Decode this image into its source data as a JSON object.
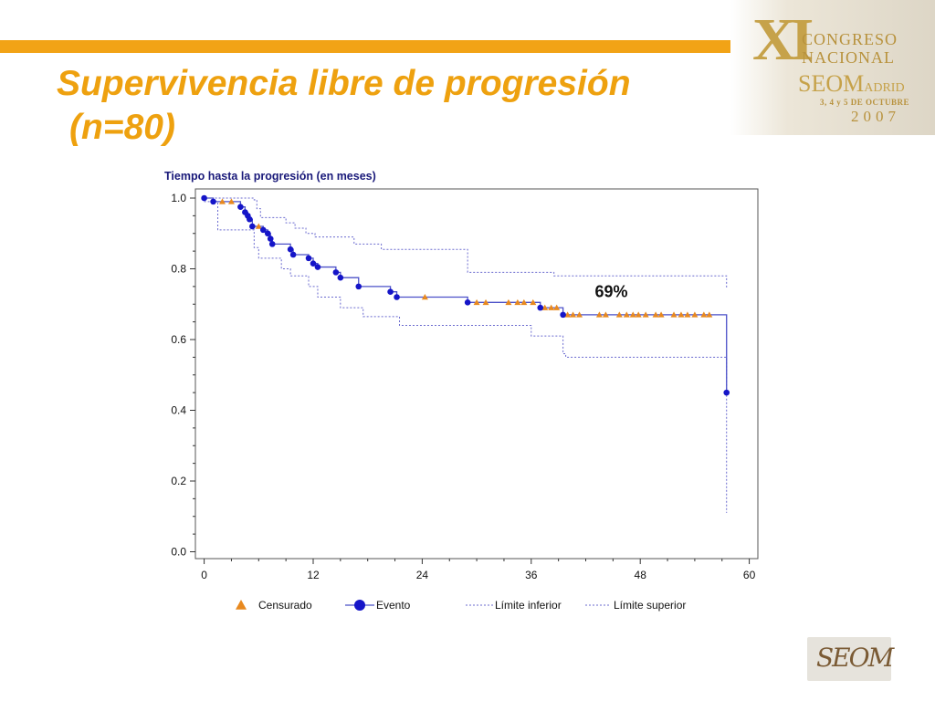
{
  "slide": {
    "title_line1": "Supervivencia libre de progresión",
    "title_line2": "(n=80)"
  },
  "banner": {
    "roman_numeral": "XI",
    "congreso": "CONGRESO",
    "nacional": "NACIONAL",
    "seom": "SEOM",
    "madrid": "ADRID",
    "dates": "3, 4 y 5 DE OCTUBRE",
    "year": "2007"
  },
  "logo": {
    "text": "SEOM"
  },
  "colors": {
    "title": "#eea10f",
    "accent_bar": "#f2a316",
    "curve": "#4b50c8",
    "event_marker": "#1515c8",
    "censor_marker": "#e8891f",
    "ci_line": "#6a6acf",
    "chart_title": "#1a1a7a"
  },
  "chart_data": {
    "type": "line",
    "title": "Tiempo hasta la progresión (en meses)",
    "xlim": [
      0,
      60
    ],
    "ylim": [
      0,
      1.0
    ],
    "x_ticks": [
      0,
      12,
      24,
      36,
      48,
      60
    ],
    "x_tick_labels": [
      "0",
      "12",
      "24",
      "36",
      "48",
      "60"
    ],
    "y_ticks": [
      0,
      0.2,
      0.4,
      0.6,
      0.8,
      1.0
    ],
    "y_tick_labels": [
      "0.0",
      "0.2",
      "0.4",
      "0.6",
      "0.8",
      "1.0"
    ],
    "grid": false,
    "legend_placement": "bottom",
    "annotation": "69%",
    "annotation_at": {
      "x": 43,
      "y": 0.72
    },
    "legend": [
      {
        "label": "Censurado",
        "symbol": "triangle"
      },
      {
        "label": "Evento",
        "symbol": "circle-line"
      },
      {
        "label": "Límite inferior",
        "symbol": "dotted"
      },
      {
        "label": "Límite superior",
        "symbol": "dotted"
      }
    ],
    "survival_steps": [
      [
        0,
        1.0
      ],
      [
        1,
        0.99
      ],
      [
        4,
        0.975
      ],
      [
        4.5,
        0.96
      ],
      [
        4.8,
        0.95
      ],
      [
        5,
        0.94
      ],
      [
        5.3,
        0.92
      ],
      [
        6.5,
        0.91
      ],
      [
        7,
        0.9
      ],
      [
        7.3,
        0.885
      ],
      [
        7.5,
        0.87
      ],
      [
        9.5,
        0.855
      ],
      [
        9.8,
        0.84
      ],
      [
        11.5,
        0.83
      ],
      [
        12,
        0.815
      ],
      [
        12.5,
        0.805
      ],
      [
        14.5,
        0.79
      ],
      [
        15,
        0.775
      ],
      [
        17,
        0.75
      ],
      [
        20.5,
        0.735
      ],
      [
        21.2,
        0.72
      ],
      [
        29,
        0.705
      ],
      [
        37,
        0.69
      ],
      [
        39.5,
        0.67
      ],
      [
        57.5,
        0.45
      ]
    ],
    "end_x": 57.5,
    "lower_limit_steps": [
      [
        0,
        0.99
      ],
      [
        1.5,
        0.91
      ],
      [
        5.5,
        0.86
      ],
      [
        6,
        0.83
      ],
      [
        8.5,
        0.8
      ],
      [
        9.5,
        0.78
      ],
      [
        11.5,
        0.75
      ],
      [
        12.5,
        0.72
      ],
      [
        15,
        0.69
      ],
      [
        17.5,
        0.665
      ],
      [
        21.5,
        0.64
      ],
      [
        36,
        0.61
      ],
      [
        39.5,
        0.56
      ],
      [
        39.8,
        0.55
      ],
      [
        57.5,
        0.11
      ]
    ],
    "upper_limit_steps": [
      [
        0,
        1.0
      ],
      [
        5.5,
        0.995
      ],
      [
        5.8,
        0.97
      ],
      [
        6.2,
        0.945
      ],
      [
        9,
        0.93
      ],
      [
        10,
        0.915
      ],
      [
        11.2,
        0.9
      ],
      [
        12.2,
        0.89
      ],
      [
        16.5,
        0.87
      ],
      [
        19.5,
        0.855
      ],
      [
        29,
        0.79
      ],
      [
        38.5,
        0.78
      ],
      [
        57.5,
        0.745
      ]
    ],
    "events": [
      [
        0,
        1.0
      ],
      [
        1,
        0.99
      ],
      [
        4,
        0.975
      ],
      [
        4.5,
        0.96
      ],
      [
        4.8,
        0.95
      ],
      [
        5,
        0.94
      ],
      [
        5.3,
        0.92
      ],
      [
        6.5,
        0.91
      ],
      [
        7,
        0.9
      ],
      [
        7.3,
        0.885
      ],
      [
        7.5,
        0.87
      ],
      [
        9.5,
        0.855
      ],
      [
        9.8,
        0.84
      ],
      [
        11.5,
        0.83
      ],
      [
        12,
        0.815
      ],
      [
        12.5,
        0.805
      ],
      [
        14.5,
        0.79
      ],
      [
        15,
        0.775
      ],
      [
        17,
        0.75
      ],
      [
        20.5,
        0.735
      ],
      [
        21.2,
        0.72
      ],
      [
        29,
        0.705
      ],
      [
        37,
        0.69
      ],
      [
        39.5,
        0.67
      ],
      [
        57.5,
        0.45
      ]
    ],
    "censored": [
      [
        2,
        0.99
      ],
      [
        3,
        0.99
      ],
      [
        6,
        0.92
      ],
      [
        24.3,
        0.72
      ],
      [
        30,
        0.705
      ],
      [
        31,
        0.705
      ],
      [
        33.5,
        0.705
      ],
      [
        34.5,
        0.705
      ],
      [
        35.2,
        0.705
      ],
      [
        36.2,
        0.705
      ],
      [
        37.5,
        0.69
      ],
      [
        38.2,
        0.69
      ],
      [
        38.8,
        0.69
      ],
      [
        40,
        0.67
      ],
      [
        40.6,
        0.67
      ],
      [
        41.3,
        0.67
      ],
      [
        43.5,
        0.67
      ],
      [
        44.2,
        0.67
      ],
      [
        45.7,
        0.67
      ],
      [
        46.5,
        0.67
      ],
      [
        47.2,
        0.67
      ],
      [
        47.8,
        0.67
      ],
      [
        48.6,
        0.67
      ],
      [
        49.7,
        0.67
      ],
      [
        50.3,
        0.67
      ],
      [
        51.7,
        0.67
      ],
      [
        52.5,
        0.67
      ],
      [
        53.2,
        0.67
      ],
      [
        54,
        0.67
      ],
      [
        55,
        0.67
      ],
      [
        55.6,
        0.67
      ]
    ]
  }
}
